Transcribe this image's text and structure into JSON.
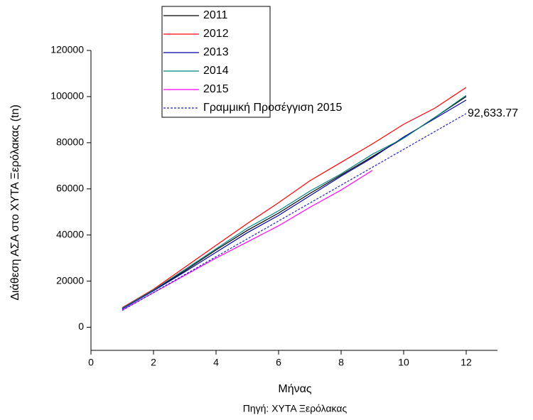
{
  "chart_data": {
    "type": "line",
    "y_label": "Διάθεση ΑΣΑ στο ΧΥΤΑ Ξερόλακας (tn)",
    "x_label": "Μήνας",
    "source": "Πηγή: ΧΥΤΑ Ξερόλακας",
    "xlim": [
      0,
      13
    ],
    "xticks": [
      0,
      2,
      4,
      6,
      8,
      10,
      12
    ],
    "ylim": [
      -10000,
      120000
    ],
    "yticks": [
      0,
      20000,
      40000,
      60000,
      80000,
      100000,
      120000
    ],
    "series": [
      {
        "name": "2011",
        "color": "#000000",
        "dash": false,
        "x": [
          1,
          2,
          3,
          4,
          5,
          6,
          7,
          8,
          9,
          10,
          11,
          12
        ],
        "values": [
          8200,
          16000,
          24500,
          33500,
          42000,
          49500,
          58000,
          66000,
          74000,
          82000,
          91000,
          100000
        ]
      },
      {
        "name": "2012",
        "color": "#ff0000",
        "dash": false,
        "x": [
          1,
          2,
          3,
          4,
          5,
          6,
          7,
          8,
          9,
          10,
          11,
          12
        ],
        "values": [
          8500,
          16500,
          26000,
          35500,
          45000,
          54000,
          63500,
          71500,
          79500,
          88000,
          95000,
          104000
        ]
      },
      {
        "name": "2013",
        "color": "#0000a0",
        "dash": false,
        "x": [
          1,
          2,
          3,
          4,
          5,
          6,
          7,
          8,
          9,
          10,
          11,
          12
        ],
        "values": [
          8000,
          15800,
          24000,
          32500,
          41000,
          48500,
          57000,
          65500,
          73500,
          82500,
          90500,
          98500
        ]
      },
      {
        "name": "2014",
        "color": "#008080",
        "dash": false,
        "x": [
          1,
          2,
          3,
          4,
          5,
          6,
          7,
          8,
          9,
          10,
          11,
          12
        ],
        "values": [
          8300,
          16200,
          25000,
          34000,
          43000,
          50500,
          59000,
          66500,
          75000,
          82000,
          91000,
          100500
        ]
      },
      {
        "name": "2015",
        "color": "#ff00ff",
        "dash": false,
        "x": [
          1,
          2,
          3,
          4,
          5,
          6,
          7,
          8,
          9
        ],
        "values": [
          7500,
          15000,
          22500,
          30000,
          37000,
          44000,
          52000,
          59500,
          68000
        ]
      },
      {
        "name": "Γραμμική Προσέγγιση 2015",
        "color": "#2020c0",
        "dash": true,
        "x": [
          1,
          12
        ],
        "values": [
          7300,
          92633.77
        ]
      }
    ],
    "annotation": {
      "text": "92,633.77",
      "x": 12,
      "y": 92633.77
    }
  }
}
